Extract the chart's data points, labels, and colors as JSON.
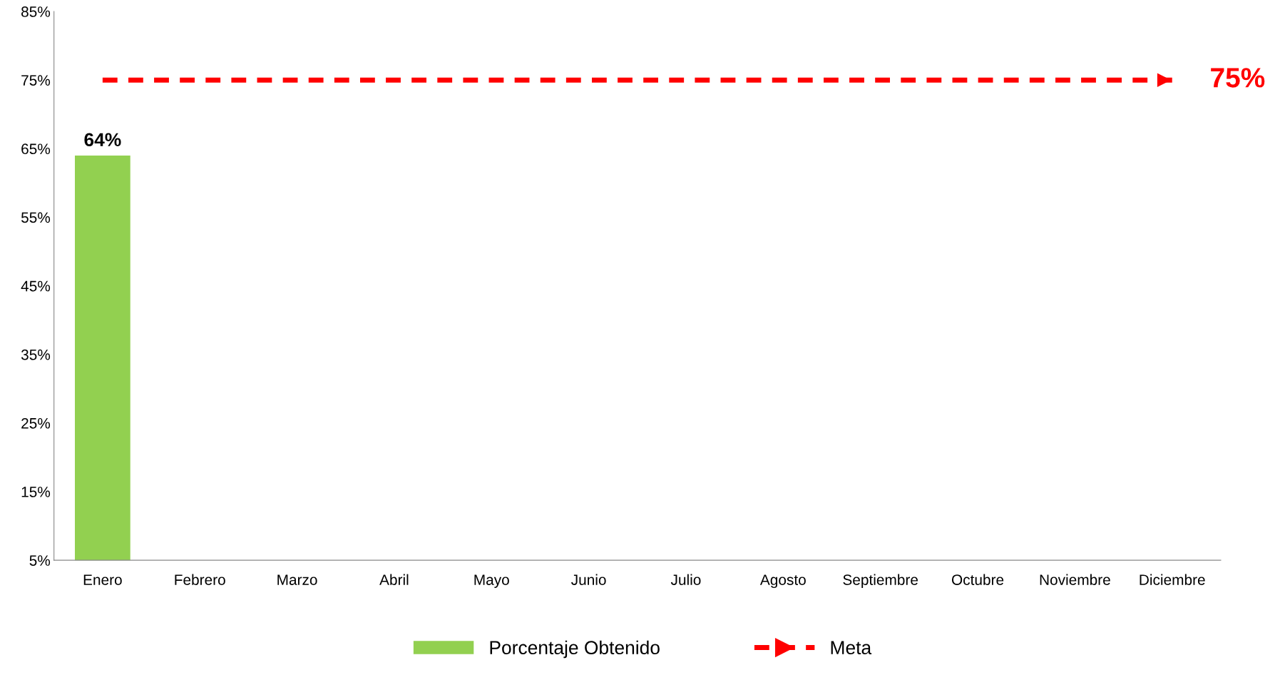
{
  "chart_data": {
    "type": "bar",
    "categories": [
      "Enero",
      "Febrero",
      "Marzo",
      "Abril",
      "Mayo",
      "Junio",
      "Julio",
      "Agosto",
      "Septiembre",
      "Octubre",
      "Noviembre",
      "Diciembre"
    ],
    "series": [
      {
        "name": "Porcentaje Obtenido",
        "color": "#92d050",
        "values": [
          64,
          null,
          null,
          null,
          null,
          null,
          null,
          null,
          null,
          null,
          null,
          null
        ],
        "value_labels": [
          "64%",
          null,
          null,
          null,
          null,
          null,
          null,
          null,
          null,
          null,
          null,
          null
        ]
      },
      {
        "name": "Meta",
        "type": "line",
        "color": "#ff0000",
        "line_style": "dashed",
        "values": [
          75,
          75,
          75,
          75,
          75,
          75,
          75,
          75,
          75,
          75,
          75,
          75
        ],
        "value_labels": [
          null,
          null,
          null,
          null,
          null,
          null,
          null,
          null,
          null,
          null,
          null,
          "75%"
        ]
      }
    ],
    "ylim": [
      5,
      85
    ],
    "yticks": [
      {
        "value": 5,
        "label": "5%"
      },
      {
        "value": 15,
        "label": "15%"
      },
      {
        "value": 25,
        "label": "25%"
      },
      {
        "value": 35,
        "label": "35%"
      },
      {
        "value": 45,
        "label": "45%"
      },
      {
        "value": 55,
        "label": "55%"
      },
      {
        "value": 65,
        "label": "65%"
      },
      {
        "value": 75,
        "label": "75%"
      },
      {
        "value": 85,
        "label": "85%"
      }
    ],
    "legend": "bottom"
  }
}
